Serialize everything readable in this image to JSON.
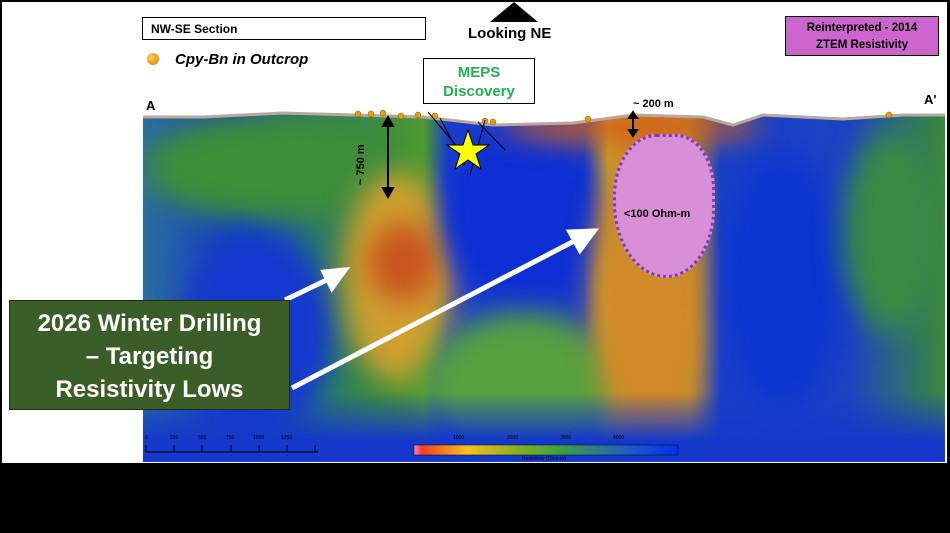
{
  "section_label": "NW-SE Section",
  "view_direction": "Looking NE",
  "legend_symbol": "Cpy-Bn in Outcrop",
  "discovery": {
    "line1": "MEPS",
    "line2": "Discovery"
  },
  "title_box": {
    "line1": "Reinterpreted - 2014",
    "line2": "ZTEM Resistivity"
  },
  "section_end_left": "A",
  "section_end_right": "A'",
  "width_annotation": "~ 200 m",
  "depth_annotation": "~ 750 m",
  "low_annotation": "<100 Ohm-m",
  "callout": {
    "line1": "2026 Winter Drilling",
    "line2": "– Targeting",
    "line3": "Resistivity Lows"
  },
  "scale_bar": {
    "ticks": [
      "0",
      "250",
      "500",
      "750",
      "1000",
      "1250"
    ]
  },
  "colorbar": {
    "ticks": [
      "1000",
      "2000",
      "3000",
      "4000"
    ],
    "label": "Resistivity (Ohm-m)"
  },
  "colors": {
    "callout_bg": "#3b5e28",
    "title_bg": "#cc66cc",
    "discovery_text": "#22b14c",
    "star": "#ffff00",
    "target_outline": "#7a3fb0"
  }
}
